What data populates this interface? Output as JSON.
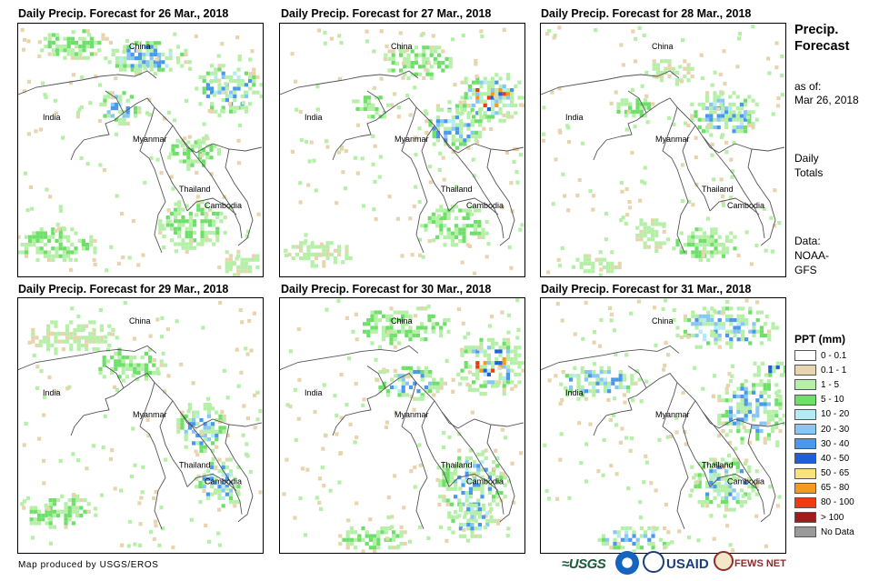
{
  "panels": [
    {
      "title": "Daily Precip. Forecast for 26 Mar., 2018"
    },
    {
      "title": "Daily Precip. Forecast for 27 Mar., 2018"
    },
    {
      "title": "Daily Precip. Forecast for 28 Mar., 2018"
    },
    {
      "title": "Daily Precip. Forecast for 29 Mar., 2018"
    },
    {
      "title": "Daily Precip. Forecast for 30 Mar., 2018"
    },
    {
      "title": "Daily Precip. Forecast for 31 Mar., 2018"
    }
  ],
  "map_labels": {
    "china": "China",
    "india": "India",
    "myanmar": "Myanmar",
    "thailand": "Thailand",
    "cambodia": "Cambodia"
  },
  "sidebar": {
    "title": "Precip. Forecast",
    "as_of_label": "as of:",
    "as_of_date": "Mar 26, 2018",
    "totals_1": "Daily",
    "totals_2": "Totals",
    "data_label": "Data:",
    "data_source_1": "NOAA-",
    "data_source_2": "GFS"
  },
  "legend": {
    "title": "PPT (mm)",
    "items": [
      {
        "label": "0 - 0.1",
        "color": "#ffffff"
      },
      {
        "label": "0.1 - 1",
        "color": "#e8d5b0"
      },
      {
        "label": "1 - 5",
        "color": "#b6f0a8"
      },
      {
        "label": "5 - 10",
        "color": "#6ee06a"
      },
      {
        "label": "10 - 20",
        "color": "#b4ecf6"
      },
      {
        "label": "20 - 30",
        "color": "#8ac6f4"
      },
      {
        "label": "30 - 40",
        "color": "#4a98ec"
      },
      {
        "label": "40 - 50",
        "color": "#1f5fd8"
      },
      {
        "label": "50 - 65",
        "color": "#f7e37a"
      },
      {
        "label": "65 - 80",
        "color": "#f59a1c"
      },
      {
        "label": "80 - 100",
        "color": "#ee3b10"
      },
      {
        "label": "> 100",
        "color": "#a01c1c"
      },
      {
        "label": "No Data",
        "color": "#9a9a9a"
      }
    ]
  },
  "footer": {
    "credit": "Map produced by USGS/EROS",
    "logo_usgs": "≈USGS",
    "logo_usaid": "USAID",
    "logo_fews": "FEWS NET"
  }
}
